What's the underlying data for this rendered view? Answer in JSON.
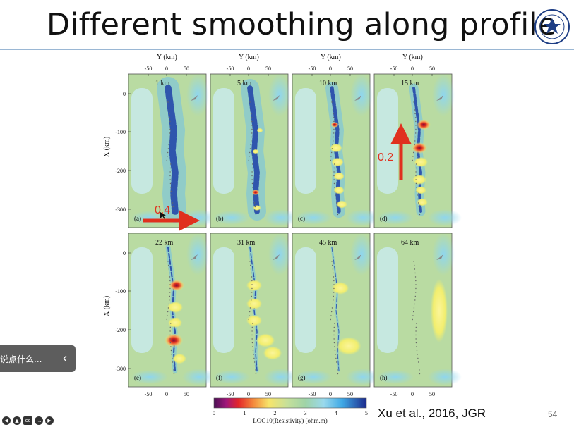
{
  "slide": {
    "title": "Different smoothing along profile",
    "citation": "Xu et al., 2016, JGR",
    "page_number": "54"
  },
  "figure": {
    "axis_top_label": "Y (km)",
    "axis_left_label": "X (km)",
    "y_ticks": [
      "-50",
      "0",
      "50"
    ],
    "x_ticks": [
      "0",
      "-100",
      "-200",
      "-300"
    ],
    "panels": [
      {
        "depth": "1 km",
        "letter": "(a)"
      },
      {
        "depth": "5 km",
        "letter": "(b)"
      },
      {
        "depth": "10 km",
        "letter": "(c)"
      },
      {
        "depth": "15 km",
        "letter": "(d)"
      },
      {
        "depth": "22 km",
        "letter": "(e)"
      },
      {
        "depth": "31 km",
        "letter": "(f)"
      },
      {
        "depth": "45 km",
        "letter": "(g)"
      },
      {
        "depth": "64 km",
        "letter": "(h)"
      }
    ],
    "annotations": {
      "horizontal_arrow_label": "0.4",
      "vertical_arrow_label": "0.2",
      "arrow_color": "#e0301e"
    },
    "colorbar": {
      "ticks": [
        "0",
        "1",
        "2",
        "3",
        "4",
        "5"
      ],
      "label": "LOG10(Resistivity) (ohm.m)"
    }
  },
  "overlay": {
    "side_panel_text": "说点什么...",
    "back_icon": "chevron-left-icon"
  },
  "colors": {
    "conductor": "#1f3fa8",
    "background_green": "#b9dba2",
    "resistor": "#f2ee6e",
    "title_rule": "#9ab7d4"
  }
}
